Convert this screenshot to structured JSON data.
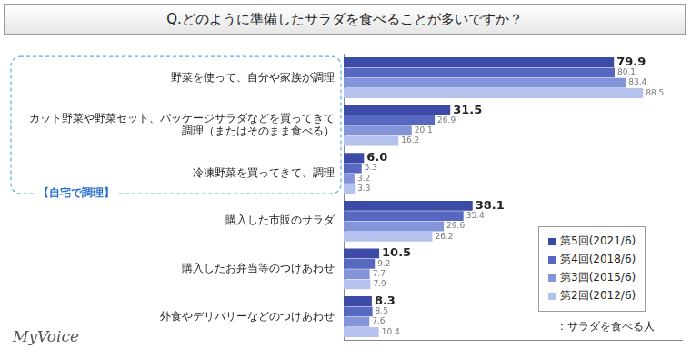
{
  "chart_data": {
    "type": "bar",
    "orientation": "horizontal",
    "title": "Q.どのように準備したサラダを食べることが多いですか？",
    "categories": [
      "野菜を使って、自分や家族が調理",
      "カット野菜や野菜セット、パッケージサラダなどを買ってきて\n調理（またはそのまま食べる）",
      "冷凍野菜を買ってきて、調理",
      "購入した市販のサラダ",
      "購入したお弁当等のつけあわせ",
      "外食やデリバリーなどのつけあわせ"
    ],
    "series": [
      {
        "name": "第5回(2021/6)",
        "color": "#3b4ba6",
        "values": [
          79.9,
          31.5,
          6.0,
          38.1,
          10.5,
          8.3
        ],
        "value_labels": [
          "79.9",
          "31.5",
          "6.0",
          "38.1",
          "10.5",
          "8.3"
        ]
      },
      {
        "name": "第4回(2018/6)",
        "color": "#5868c0",
        "values": [
          80.1,
          26.9,
          5.3,
          35.4,
          9.2,
          8.5
        ]
      },
      {
        "name": "第3回(2015/6)",
        "color": "#8494d8",
        "values": [
          83.4,
          20.1,
          3.2,
          29.6,
          7.7,
          7.6
        ]
      },
      {
        "name": "第2回(2012/6)",
        "color": "#b6c2ee",
        "values": [
          88.5,
          16.2,
          3.3,
          26.2,
          7.9,
          10.4
        ]
      }
    ],
    "xlim": [
      0,
      100
    ],
    "xticks": [],
    "grid": false,
    "legend": "lower right",
    "data_labels": true,
    "tick_labels": "y",
    "groups": [
      {
        "label": "【自宅で調理】",
        "from": 0,
        "to": 2
      }
    ],
    "note": "：サラダを食べる人",
    "source": "MyVoice"
  }
}
